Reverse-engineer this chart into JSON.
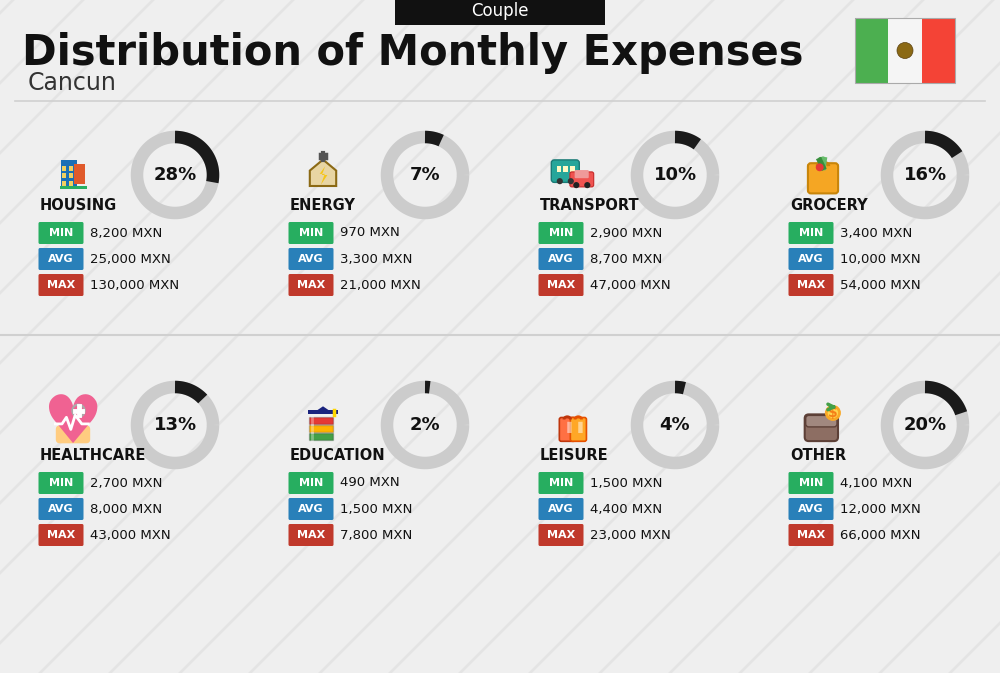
{
  "title": "Distribution of Monthly Expenses",
  "subtitle": "Cancun",
  "header_label": "Couple",
  "bg_color": "#efefef",
  "categories": [
    {
      "name": "HOUSING",
      "pct": 28,
      "min_val": "8,200 MXN",
      "avg_val": "25,000 MXN",
      "max_val": "130,000 MXN",
      "col": 0,
      "row": 0
    },
    {
      "name": "ENERGY",
      "pct": 7,
      "min_val": "970 MXN",
      "avg_val": "3,300 MXN",
      "max_val": "21,000 MXN",
      "col": 1,
      "row": 0
    },
    {
      "name": "TRANSPORT",
      "pct": 10,
      "min_val": "2,900 MXN",
      "avg_val": "8,700 MXN",
      "max_val": "47,000 MXN",
      "col": 2,
      "row": 0
    },
    {
      "name": "GROCERY",
      "pct": 16,
      "min_val": "3,400 MXN",
      "avg_val": "10,000 MXN",
      "max_val": "54,000 MXN",
      "col": 3,
      "row": 0
    },
    {
      "name": "HEALTHCARE",
      "pct": 13,
      "min_val": "2,700 MXN",
      "avg_val": "8,000 MXN",
      "max_val": "43,000 MXN",
      "col": 0,
      "row": 1
    },
    {
      "name": "EDUCATION",
      "pct": 2,
      "min_val": "490 MXN",
      "avg_val": "1,500 MXN",
      "max_val": "7,800 MXN",
      "col": 1,
      "row": 1
    },
    {
      "name": "LEISURE",
      "pct": 4,
      "min_val": "1,500 MXN",
      "avg_val": "4,400 MXN",
      "max_val": "23,000 MXN",
      "col": 2,
      "row": 1
    },
    {
      "name": "OTHER",
      "pct": 20,
      "min_val": "4,100 MXN",
      "avg_val": "12,000 MXN",
      "max_val": "66,000 MXN",
      "col": 3,
      "row": 1
    }
  ],
  "color_min": "#27ae60",
  "color_avg": "#2980b9",
  "color_max": "#c0392b",
  "donut_bg": "#cccccc",
  "donut_fg": "#1a1a1a",
  "flag_green": "#4caf50",
  "flag_white": "#f5f5f5",
  "flag_red": "#f44336",
  "stripe_color": "#e0e0e0",
  "divider_color": "#d0d0d0"
}
